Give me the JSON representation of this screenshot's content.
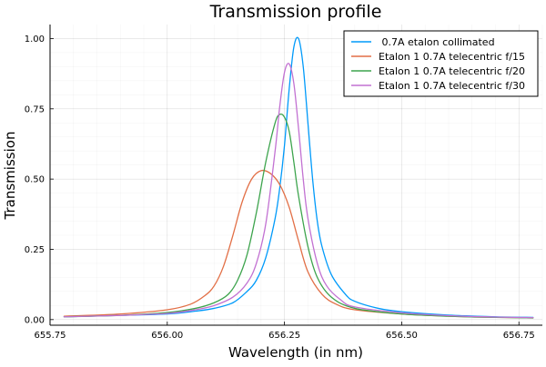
{
  "chart_data": {
    "type": "line",
    "title": "Transmission profile",
    "xlabel": "Wavelength (in nm)",
    "ylabel": "Transmission",
    "xlim": [
      655.75,
      656.8
    ],
    "ylim": [
      -0.02,
      1.05
    ],
    "xticks": [
      655.75,
      656.0,
      656.25,
      656.5,
      656.75
    ],
    "xtick_labels": [
      "655.75",
      "656.00",
      "656.25",
      "656.50",
      "656.75"
    ],
    "yticks": [
      0.0,
      0.25,
      0.5,
      0.75,
      1.0
    ],
    "ytick_labels": [
      "0.00",
      "0.25",
      "0.50",
      "0.75",
      "1.00"
    ],
    "grid": true,
    "legend_position": "top-right",
    "series": [
      {
        "name": " 0.7A etalon collimated",
        "color": "#009AFA",
        "x": [
          655.78,
          655.9,
          656.0,
          656.06,
          656.1,
          656.14,
          656.17,
          656.19,
          656.21,
          656.23,
          656.24,
          656.25,
          656.26,
          656.27,
          656.28,
          656.29,
          656.3,
          656.31,
          656.32,
          656.33,
          656.35,
          656.38,
          656.4,
          656.45,
          656.5,
          656.6,
          656.7,
          656.78
        ],
        "y": [
          0.01,
          0.015,
          0.02,
          0.03,
          0.04,
          0.06,
          0.1,
          0.14,
          0.22,
          0.36,
          0.47,
          0.62,
          0.82,
          0.97,
          1.0,
          0.9,
          0.7,
          0.5,
          0.35,
          0.26,
          0.16,
          0.09,
          0.065,
          0.04,
          0.028,
          0.016,
          0.01,
          0.008
        ]
      },
      {
        "name": "Etalon 1 0.7A telecentric f/15",
        "color": "#E26F46",
        "x": [
          655.78,
          655.9,
          656.0,
          656.05,
          656.08,
          656.1,
          656.12,
          656.14,
          656.16,
          656.18,
          656.2,
          656.22,
          656.24,
          656.26,
          656.28,
          656.3,
          656.33,
          656.36,
          656.4,
          656.5,
          656.6,
          656.7,
          656.78
        ],
        "y": [
          0.012,
          0.02,
          0.035,
          0.055,
          0.085,
          0.12,
          0.19,
          0.3,
          0.42,
          0.5,
          0.53,
          0.52,
          0.48,
          0.4,
          0.28,
          0.17,
          0.09,
          0.055,
          0.035,
          0.02,
          0.012,
          0.008,
          0.006
        ]
      },
      {
        "name": "Etalon 1 0.7A telecentric f/20",
        "color": "#3DA44D",
        "x": [
          655.78,
          655.9,
          656.0,
          656.06,
          656.1,
          656.13,
          656.15,
          656.17,
          656.19,
          656.21,
          656.23,
          656.24,
          656.25,
          656.26,
          656.27,
          656.28,
          656.3,
          656.32,
          656.35,
          656.4,
          656.5,
          656.6,
          656.7,
          656.78
        ],
        "y": [
          0.01,
          0.015,
          0.025,
          0.04,
          0.06,
          0.09,
          0.14,
          0.23,
          0.38,
          0.56,
          0.7,
          0.73,
          0.72,
          0.67,
          0.56,
          0.44,
          0.26,
          0.15,
          0.08,
          0.04,
          0.02,
          0.012,
          0.008,
          0.006
        ]
      },
      {
        "name": "Etalon 1 0.7A telecentric f/30",
        "color": "#C271D2",
        "x": [
          655.78,
          655.9,
          656.0,
          656.06,
          656.1,
          656.14,
          656.17,
          656.19,
          656.21,
          656.23,
          656.24,
          656.25,
          656.26,
          656.27,
          656.28,
          656.29,
          656.3,
          656.32,
          656.34,
          656.37,
          656.4,
          656.5,
          656.6,
          656.7,
          656.78
        ],
        "y": [
          0.01,
          0.015,
          0.022,
          0.035,
          0.05,
          0.08,
          0.13,
          0.2,
          0.34,
          0.6,
          0.76,
          0.88,
          0.91,
          0.84,
          0.68,
          0.5,
          0.36,
          0.2,
          0.12,
          0.07,
          0.045,
          0.024,
          0.014,
          0.009,
          0.007
        ]
      }
    ]
  }
}
